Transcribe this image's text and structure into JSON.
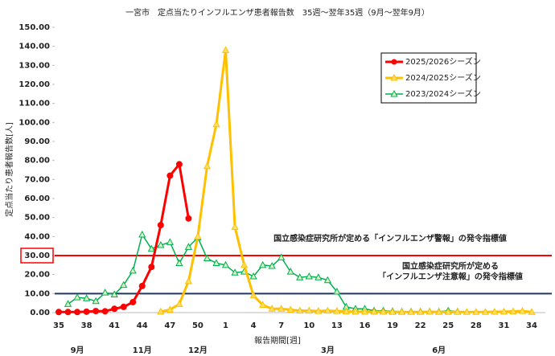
{
  "chart_data": {
    "type": "line",
    "title": "一宮市　定点当たりインフルエンザ患者報告数　35週～翌年35週（9月～翌年9月）",
    "y_label": "定点当たり患者報告数[人]",
    "x_label": "報告期間[週]",
    "categories": [
      "35",
      null,
      null,
      "38",
      null,
      null,
      "41",
      null,
      null,
      "44",
      null,
      null,
      "47",
      null,
      null,
      "50",
      null,
      null,
      "1",
      null,
      null,
      "4",
      null,
      null,
      "7",
      null,
      null,
      "10",
      null,
      null,
      "13",
      null,
      null,
      "16",
      null,
      null,
      "19",
      null,
      null,
      "22",
      null,
      null,
      "25",
      null,
      null,
      "28",
      null,
      null,
      "31",
      null,
      null,
      "34"
    ],
    "month_labels": [
      null,
      null,
      "9月",
      null,
      null,
      null,
      null,
      null,
      null,
      "11月",
      null,
      null,
      null,
      null,
      null,
      "12月",
      null,
      null,
      null,
      null,
      null,
      null,
      null,
      null,
      null,
      null,
      null,
      null,
      null,
      "3月",
      null,
      null,
      null,
      null,
      null,
      null,
      null,
      null,
      null,
      null,
      null,
      "6月",
      null,
      null,
      null,
      null,
      null,
      null,
      null,
      null,
      null,
      null
    ],
    "ylim": [
      0,
      150
    ],
    "yticks": [
      {
        "value": 0,
        "label": "0.00"
      },
      {
        "value": 10,
        "label": "10.00"
      },
      {
        "value": 20,
        "label": "20.00"
      },
      {
        "value": 30,
        "label": "30.00"
      },
      {
        "value": 40,
        "label": "40.00"
      },
      {
        "value": 50,
        "label": "50.00"
      },
      {
        "value": 60,
        "label": "60.00"
      },
      {
        "value": 70,
        "label": "70.00"
      },
      {
        "value": 80,
        "label": "80.00"
      },
      {
        "value": 90,
        "label": "90.00"
      },
      {
        "value": 100,
        "label": "100.00"
      },
      {
        "value": 110,
        "label": "110.00"
      },
      {
        "value": 120,
        "label": "120.00"
      },
      {
        "value": 130,
        "label": "130.00"
      },
      {
        "value": 140,
        "label": "140.00"
      },
      {
        "value": 150,
        "label": "150.00"
      }
    ],
    "grid": false,
    "reference_lines": [
      {
        "value": 30,
        "color": "#ff0000",
        "text": [
          "国立感染症研究所が定める「インフルエンザ警報」の発令指標値"
        ]
      },
      {
        "value": 10,
        "color": "#1f3864",
        "text": [
          "国立感染症研究所が定める",
          "「インフルエンザ注意報」の発令指標値"
        ]
      }
    ],
    "series": [
      {
        "name": "2025/2026シーズン",
        "color": "#ff0000",
        "marker": "circle",
        "values": [
          0.3,
          0.3,
          0.3,
          0.5,
          0.8,
          0.7,
          2,
          3,
          5.5,
          14,
          24,
          46,
          72,
          78,
          49.5,
          null,
          null,
          null,
          null,
          null,
          null,
          null,
          null,
          null,
          null,
          null,
          null,
          null,
          null,
          null,
          null,
          null,
          null,
          null,
          null,
          null,
          null,
          null,
          null,
          null,
          null,
          null,
          null,
          null,
          null,
          null,
          null,
          null,
          null,
          null,
          null,
          null
        ]
      },
      {
        "name": "2024/2025シーズン",
        "color": "#ffc000",
        "marker": "triangle",
        "values": [
          null,
          null,
          null,
          null,
          null,
          null,
          null,
          null,
          null,
          null,
          null,
          0.5,
          1.5,
          4.5,
          16.5,
          40,
          77,
          99,
          138,
          45,
          25,
          9,
          4,
          2,
          2,
          1.5,
          1,
          1,
          0.8,
          1,
          0.8,
          0.6,
          0.5,
          0.5,
          0.4,
          0.4,
          0.3,
          0.3,
          0.3,
          0.3,
          0.4,
          0.3,
          0.3,
          0.3,
          0.3,
          0.3,
          0.3,
          0.4,
          0.5,
          0.6,
          0.8,
          0.3
        ]
      },
      {
        "name": "2023/2024シーズン",
        "color": "#00b050",
        "marker": "triangle",
        "values": [
          null,
          4.5,
          8,
          7.5,
          6,
          10.5,
          9.5,
          14.5,
          22,
          41,
          33.5,
          35.5,
          37,
          26,
          34.5,
          39.5,
          28.5,
          26,
          25,
          21,
          21.5,
          19,
          25,
          24.5,
          29,
          21.5,
          18.5,
          19,
          18.5,
          17,
          11,
          3,
          2,
          2,
          1,
          1,
          0.7,
          0.5,
          0.5,
          0.5,
          0.5,
          0.5,
          1,
          0.5,
          null,
          null,
          null,
          null,
          null,
          null,
          null,
          null
        ]
      }
    ]
  }
}
